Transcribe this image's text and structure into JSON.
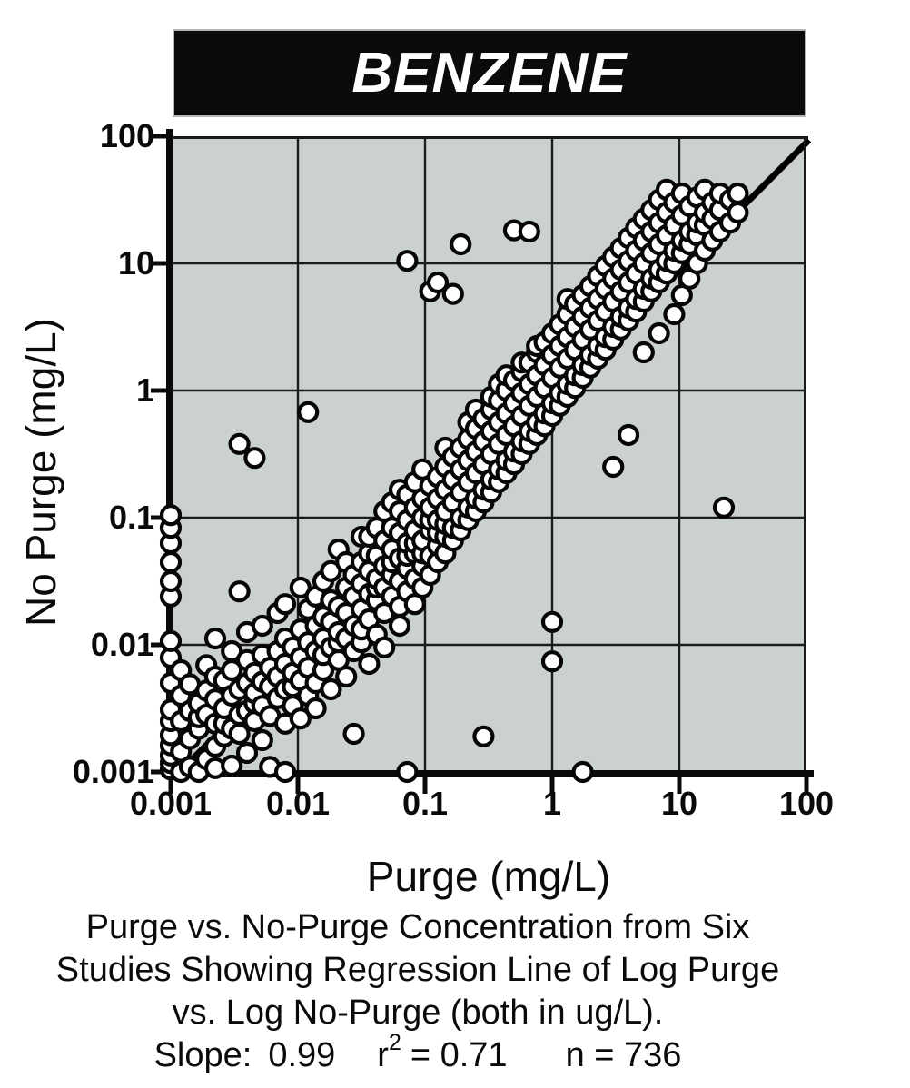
{
  "title": "BENZENE",
  "chart_data": {
    "type": "scatter",
    "title": "BENZENE",
    "xlabel": "Purge  (mg/L)",
    "ylabel": "No Purge (mg/L)",
    "x_scale": "log",
    "y_scale": "log",
    "xlim": [
      0.001,
      100
    ],
    "ylim": [
      0.001,
      100
    ],
    "grid": true,
    "x_ticks": [
      "0.001",
      "0.01",
      "0.1",
      "1",
      "10",
      "100"
    ],
    "y_ticks": [
      "100",
      "10",
      "1",
      "0.1",
      "0.01",
      "0.001"
    ],
    "marker": "open-circle",
    "regression_line_log10": {
      "x1": -2.93,
      "y1": -3.0,
      "x2": 2.02,
      "y2": 1.97
    },
    "stats": {
      "slope": 0.99,
      "r_squared": 0.71,
      "n": 736
    },
    "points_units": "log10 of mg/L; columns format [log10_x, [log10_y, ...]]",
    "point_columns_log10": [
      [
        -3.0,
        [
          -2.98,
          -2.93,
          -2.87,
          -2.79,
          -2.71,
          -2.6,
          -2.51,
          -2.3,
          -2.1,
          -1.97,
          -1.62,
          -1.5,
          -1.35,
          -1.2,
          -1.08,
          -0.98
        ]
      ],
      [
        -2.92,
        [
          -3.0,
          -2.84,
          -2.6,
          -2.4,
          -2.2
        ]
      ],
      [
        -2.85,
        [
          -2.96,
          -2.74,
          -2.52,
          -2.31
        ]
      ],
      [
        -2.78,
        [
          -3.0,
          -2.66,
          -2.57,
          -2.46
        ]
      ],
      [
        -2.72,
        [
          -2.9,
          -2.55,
          -2.36,
          -2.16
        ]
      ],
      [
        -2.65,
        [
          -2.97,
          -2.8,
          -2.62,
          -2.43,
          -2.25,
          -1.95
        ]
      ],
      [
        -2.58,
        [
          -2.72,
          -2.62,
          -2.5,
          -2.28
        ]
      ],
      [
        -2.52,
        [
          -2.95,
          -2.66,
          -2.4,
          -2.2,
          -2.05
        ]
      ],
      [
        -2.46,
        [
          -2.7,
          -2.55,
          -2.35,
          -1.58,
          -0.42
        ]
      ],
      [
        -2.4,
        [
          -2.85,
          -2.52,
          -2.3,
          -2.12,
          -1.9
        ]
      ],
      [
        -2.34,
        [
          -2.6,
          -2.46,
          -2.38,
          -2.22,
          -0.53
        ]
      ],
      [
        -2.28,
        [
          -2.75,
          -2.48,
          -2.29,
          -2.08,
          -1.85
        ]
      ],
      [
        -2.22,
        [
          -2.96,
          -2.56,
          -2.33,
          -2.18
        ]
      ],
      [
        -2.16,
        [
          -2.42,
          -2.25,
          -2.05,
          -1.75
        ]
      ],
      [
        -2.1,
        [
          -3.0,
          -2.62,
          -2.35,
          -2.15,
          -1.95,
          -1.68
        ]
      ],
      [
        -2.04,
        [
          -2.48,
          -2.33,
          -2.22,
          -2.02
        ]
      ],
      [
        -1.98,
        [
          -2.58,
          -2.28,
          -2.1,
          -1.88,
          -1.55
        ]
      ],
      [
        -1.92,
        [
          -2.4,
          -2.18,
          -1.98,
          -1.72,
          -0.17
        ]
      ],
      [
        -1.86,
        [
          -2.5,
          -2.3,
          -2.05,
          -1.85,
          -1.62
        ]
      ],
      [
        -1.8,
        [
          -2.2,
          -2.08,
          -1.95,
          -1.78,
          -1.5
        ]
      ],
      [
        -1.74,
        [
          -2.35,
          -2.02,
          -1.82,
          -1.65,
          -1.42
        ]
      ],
      [
        -1.68,
        [
          -2.12,
          -1.98,
          -1.9,
          -1.7,
          -1.25
        ]
      ],
      [
        -1.62,
        [
          -2.25,
          -1.95,
          -1.75,
          -1.55,
          -1.35
        ]
      ],
      [
        -1.56,
        [
          -2.7,
          -2.05,
          -1.85,
          -1.62,
          -1.45
        ]
      ],
      [
        -1.5,
        [
          -1.98,
          -1.88,
          -1.72,
          -1.52,
          -1.35,
          -1.15
        ]
      ],
      [
        -1.44,
        [
          -2.15,
          -1.8,
          -1.6,
          -1.42,
          -1.28,
          -1.15
        ]
      ],
      [
        -1.38,
        [
          -1.92,
          -1.65,
          -1.55,
          -1.48,
          -1.3,
          -1.08
        ]
      ],
      [
        -1.32,
        [
          -2.02,
          -1.75,
          -1.55,
          -1.38,
          -1.18,
          -0.95
        ]
      ],
      [
        -1.26,
        [
          -1.62,
          -1.45,
          -1.35,
          -1.25,
          -1.08,
          -0.88
        ]
      ],
      [
        -1.2,
        [
          -1.85,
          -1.7,
          -1.5,
          -1.32,
          -1.12,
          -0.95,
          -0.78
        ]
      ],
      [
        -1.14,
        [
          -3.0,
          -1.58,
          -1.4,
          -1.3,
          -1.2,
          -1.02,
          -0.82,
          1.02
        ]
      ],
      [
        -1.08,
        [
          -1.68,
          -1.48,
          -1.28,
          -1.2,
          -1.1,
          -0.92,
          -0.72
        ]
      ],
      [
        -1.02,
        [
          -1.55,
          -1.38,
          -1.28,
          -1.18,
          -1.0,
          -0.85,
          -0.62
        ]
      ],
      [
        -0.96,
        [
          -1.45,
          -1.3,
          -1.1,
          -1.02,
          -0.92,
          -0.75,
          0.78
        ]
      ],
      [
        -0.9,
        [
          -1.35,
          -1.22,
          -1.12,
          -1.02,
          -0.85,
          -0.68,
          0.85
        ]
      ],
      [
        -0.84,
        [
          -1.28,
          -1.15,
          -1.05,
          -0.95,
          -0.78,
          -0.6,
          -0.45
        ]
      ],
      [
        -0.78,
        [
          -1.18,
          -1.08,
          -0.88,
          -0.7,
          -0.52,
          0.76
        ]
      ],
      [
        -0.72,
        [
          -1.1,
          -1.0,
          -0.8,
          -0.62,
          -0.45,
          1.15
        ]
      ],
      [
        -0.66,
        [
          -1.02,
          -0.92,
          -0.72,
          -0.55,
          -0.38,
          -0.25
        ]
      ],
      [
        -0.6,
        [
          -0.95,
          -0.85,
          -0.65,
          -0.48,
          -0.3,
          -0.15
        ]
      ],
      [
        -0.54,
        [
          -2.72,
          -0.88,
          -0.78,
          -0.58,
          -0.4,
          -0.22
        ]
      ],
      [
        -0.48,
        [
          -0.8,
          -0.7,
          -0.5,
          -0.32,
          -0.15,
          -0.05
        ]
      ],
      [
        -0.42,
        [
          -0.72,
          -0.62,
          -0.42,
          -0.25,
          -0.08,
          0.05
        ]
      ],
      [
        -0.36,
        [
          -0.65,
          -0.55,
          -0.35,
          -0.18,
          0.0,
          0.12
        ]
      ],
      [
        -0.3,
        [
          -0.58,
          -0.48,
          -0.28,
          -0.1,
          0.08,
          1.26
        ]
      ],
      [
        -0.24,
        [
          -0.5,
          -0.4,
          -0.2,
          -0.02,
          0.15,
          0.22
        ]
      ],
      [
        -0.18,
        [
          -0.42,
          -0.32,
          -0.12,
          0.05,
          0.22,
          1.25
        ]
      ],
      [
        -0.12,
        [
          -0.35,
          -0.25,
          -0.05,
          0.12,
          0.3,
          0.35
        ]
      ],
      [
        -0.06,
        [
          -0.28,
          -0.18,
          0.02,
          0.2,
          0.38
        ]
      ],
      [
        0.0,
        [
          -2.13,
          -1.82,
          -0.2,
          -0.1,
          0.1,
          0.28,
          0.45
        ]
      ],
      [
        0.06,
        [
          -0.12,
          -0.02,
          0.18,
          0.35,
          0.52
        ]
      ],
      [
        0.12,
        [
          -0.05,
          0.05,
          0.25,
          0.42,
          0.6,
          0.72
        ]
      ],
      [
        0.18,
        [
          0.02,
          0.12,
          0.32,
          0.5,
          0.68
        ]
      ],
      [
        0.24,
        [
          -3.0,
          0.1,
          0.2,
          0.4,
          0.58,
          0.75
        ]
      ],
      [
        0.3,
        [
          0.18,
          0.28,
          0.48,
          0.65,
          0.82
        ]
      ],
      [
        0.36,
        [
          0.25,
          0.35,
          0.55,
          0.72,
          0.9
        ]
      ],
      [
        0.42,
        [
          0.32,
          0.42,
          0.62,
          0.8,
          0.98
        ]
      ],
      [
        0.48,
        [
          -0.6,
          0.4,
          0.5,
          0.7,
          0.88,
          1.05
        ]
      ],
      [
        0.54,
        [
          0.48,
          0.58,
          0.78,
          0.95,
          1.12
        ]
      ],
      [
        0.6,
        [
          -0.35,
          0.55,
          0.65,
          0.85,
          1.02,
          1.2
        ]
      ],
      [
        0.66,
        [
          0.62,
          0.72,
          0.92,
          1.1,
          1.28
        ]
      ],
      [
        0.72,
        [
          0.3,
          0.7,
          0.8,
          1.0,
          1.18,
          1.35
        ]
      ],
      [
        0.78,
        [
          0.78,
          0.88,
          1.08,
          1.25,
          1.42
        ]
      ],
      [
        0.84,
        [
          0.45,
          0.85,
          0.95,
          1.15,
          1.32,
          1.5
        ]
      ],
      [
        0.9,
        [
          0.92,
          1.02,
          1.22,
          1.4,
          1.58
        ]
      ],
      [
        0.96,
        [
          0.6,
          1.0,
          1.1,
          1.3,
          1.48
        ]
      ],
      [
        1.02,
        [
          0.75,
          1.08,
          1.18,
          1.38,
          1.55
        ]
      ],
      [
        1.08,
        [
          0.88,
          1.15,
          1.25,
          1.45
        ]
      ],
      [
        1.14,
        [
          1.0,
          1.22,
          1.32,
          1.52
        ]
      ],
      [
        1.2,
        [
          1.1,
          1.3,
          1.4,
          1.58
        ]
      ],
      [
        1.26,
        [
          1.18,
          1.35,
          1.48
        ]
      ],
      [
        1.32,
        [
          1.25,
          1.42,
          1.55
        ]
      ],
      [
        1.35,
        [
          -0.92
        ]
      ],
      [
        1.4,
        [
          1.32,
          1.5
        ]
      ],
      [
        1.46,
        [
          1.4,
          1.55
        ]
      ]
    ]
  },
  "caption": {
    "line1": "Purge vs. No-Purge Concentration from Six",
    "line2": "Studies Showing Regression Line of Log Purge",
    "line3": "vs. Log No-Purge (both in ug/L).",
    "slope_label": "Slope:",
    "slope_value": "0.99",
    "r_base": "r",
    "r_sup": "2",
    "r_eq": "= 0.71",
    "n_text": "n = 736"
  },
  "colors": {
    "plot_bg": "#cbd1cc",
    "grid": "#1c1c1c",
    "frame": "#1a1a1a",
    "axis": "#0a0a0a",
    "banner_bg": "#0b0b0b",
    "banner_text": "#ffffff",
    "point_fill": "#ffffff",
    "point_stroke": "#060606",
    "regression_line": "#000000"
  }
}
